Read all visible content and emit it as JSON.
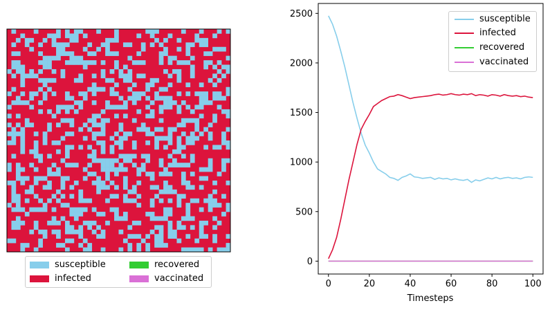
{
  "chart_data": [
    {
      "type": "heatmap",
      "rows": 50,
      "cols": 50,
      "categories": [
        "susceptible",
        "infected",
        "recovered",
        "vaccinated"
      ],
      "colors": {
        "susceptible": "#87ceeb",
        "infected": "#dc143c",
        "recovered": "#32cd32",
        "vaccinated": "#da70d6"
      },
      "susceptible_fraction": 0.34,
      "legend": {
        "placement": "below",
        "items": [
          {
            "label": "susceptible",
            "color": "#87ceeb"
          },
          {
            "label": "recovered",
            "color": "#32cd32"
          },
          {
            "label": "infected",
            "color": "#dc143c"
          },
          {
            "label": "vaccinated",
            "color": "#da70d6"
          }
        ]
      }
    },
    {
      "type": "line",
      "xlabel": "Timesteps",
      "ylabel": "",
      "xlim": [
        -5,
        105
      ],
      "ylim": [
        -130,
        2600
      ],
      "xticks": [
        0,
        20,
        40,
        60,
        80,
        100
      ],
      "yticks": [
        0,
        500,
        1000,
        1500,
        2000,
        2500
      ],
      "grid": false,
      "legend_placement": "top-right",
      "x": [
        0,
        2,
        4,
        6,
        8,
        10,
        12,
        14,
        16,
        18,
        20,
        22,
        24,
        26,
        28,
        30,
        32,
        34,
        36,
        38,
        40,
        42,
        44,
        46,
        48,
        50,
        52,
        54,
        56,
        58,
        60,
        62,
        64,
        66,
        68,
        70,
        72,
        74,
        76,
        78,
        80,
        82,
        84,
        86,
        88,
        90,
        92,
        94,
        96,
        98,
        100
      ],
      "series": [
        {
          "name": "susceptible",
          "color": "#87ceeb",
          "values": [
            2475,
            2390,
            2270,
            2120,
            1960,
            1780,
            1600,
            1440,
            1290,
            1170,
            1090,
            1000,
            930,
            905,
            880,
            845,
            835,
            815,
            845,
            860,
            880,
            850,
            845,
            835,
            840,
            845,
            825,
            840,
            830,
            835,
            820,
            830,
            820,
            815,
            825,
            795,
            820,
            810,
            825,
            840,
            830,
            845,
            830,
            840,
            845,
            835,
            840,
            830,
            845,
            850,
            845
          ]
        },
        {
          "name": "infected",
          "color": "#dc143c",
          "values": [
            25,
            115,
            240,
            420,
            620,
            820,
            1000,
            1180,
            1330,
            1410,
            1480,
            1560,
            1590,
            1620,
            1640,
            1660,
            1665,
            1680,
            1670,
            1655,
            1640,
            1650,
            1655,
            1660,
            1665,
            1670,
            1680,
            1685,
            1675,
            1680,
            1690,
            1680,
            1675,
            1685,
            1680,
            1690,
            1670,
            1680,
            1675,
            1665,
            1680,
            1675,
            1665,
            1680,
            1670,
            1665,
            1670,
            1660,
            1665,
            1655,
            1650
          ]
        },
        {
          "name": "recovered",
          "color": "#32cd32",
          "values": [
            0,
            0,
            0,
            0,
            0,
            0,
            0,
            0,
            0,
            0,
            0,
            0,
            0,
            0,
            0,
            0,
            0,
            0,
            0,
            0,
            0,
            0,
            0,
            0,
            0,
            0,
            0,
            0,
            0,
            0,
            0,
            0,
            0,
            0,
            0,
            0,
            0,
            0,
            0,
            0,
            0,
            0,
            0,
            0,
            0,
            0,
            0,
            0,
            0,
            0,
            0
          ]
        },
        {
          "name": "vaccinated",
          "color": "#da70d6",
          "values": [
            0,
            0,
            0,
            0,
            0,
            0,
            0,
            0,
            0,
            0,
            0,
            0,
            0,
            0,
            0,
            0,
            0,
            0,
            0,
            0,
            0,
            0,
            0,
            0,
            0,
            0,
            0,
            0,
            0,
            0,
            0,
            0,
            0,
            0,
            0,
            0,
            0,
            0,
            0,
            0,
            0,
            0,
            0,
            0,
            0,
            0,
            0,
            0,
            0,
            0,
            0
          ]
        }
      ]
    }
  ]
}
